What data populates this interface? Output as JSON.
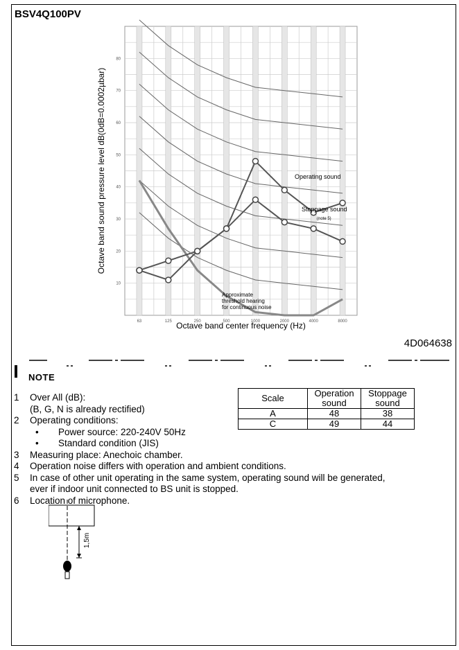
{
  "header": {
    "model": "BSV4Q100PV",
    "drawing_code": "4D064638"
  },
  "chart_data": {
    "type": "line",
    "title": "",
    "xlabel": "Octave band center frequency (Hz)",
    "ylabel": "Octave band sound pressure level   dB(0dB=0.0002µbar)",
    "x_ticks": [
      "63",
      "125",
      "250",
      "500",
      "1000",
      "2000",
      "4000",
      "8000"
    ],
    "y_ticks": [
      10,
      20,
      30,
      40,
      50,
      60,
      70,
      80
    ],
    "ylim": [
      0,
      90
    ],
    "nc_curves": [
      10,
      20,
      30,
      40,
      50,
      60,
      70
    ],
    "grid": true,
    "series": [
      {
        "name": "Operating sound",
        "x": [
          "63",
          "125",
          "250",
          "500",
          "1000",
          "2000",
          "4000",
          "8000"
        ],
        "values": [
          14,
          17,
          20,
          27,
          48,
          39,
          32,
          35
        ]
      },
      {
        "name": "Stoppage sound",
        "x": [
          "63",
          "125",
          "250",
          "500",
          "1000",
          "2000",
          "4000",
          "8000"
        ],
        "values": [
          14,
          11,
          20,
          27,
          36,
          29,
          27,
          23
        ]
      }
    ],
    "annotations": {
      "operating": "Operating sound",
      "stoppage": "Stoppage sound",
      "stoppage_note": "(note 5)",
      "threshold_1": "Approximate",
      "threshold_2": "threshold hearing",
      "threshold_3": "for continuous noise"
    }
  },
  "note": {
    "heading": "NOTE",
    "items": [
      {
        "num": "1",
        "text": "Over All (dB):",
        "sub": "(B, G, N is already rectified)"
      },
      {
        "num": "2",
        "text": "Operating conditions:",
        "bullets": [
          "Power source: 220-240V  50Hz",
          "Standard condition (JIS)"
        ]
      },
      {
        "num": "3",
        "text": "Measuring place: Anechoic chamber."
      },
      {
        "num": "4",
        "text": "Operation noise differs with operation and ambient conditions."
      },
      {
        "num": "5",
        "text": "In case of other unit operating in the same system, operating sound will be generated,",
        "sub": "ever if indoor unit connected to BS unit is stopped."
      },
      {
        "num": "6",
        "text": "Location of microphone."
      }
    ],
    "bullet_char": "•"
  },
  "scale_table": {
    "headers": [
      "Scale",
      "Operation sound",
      "Stoppage sound"
    ],
    "rows": [
      [
        "A",
        "48",
        "38"
      ],
      [
        "C",
        "49",
        "44"
      ]
    ]
  },
  "mic_label": "1,5m"
}
